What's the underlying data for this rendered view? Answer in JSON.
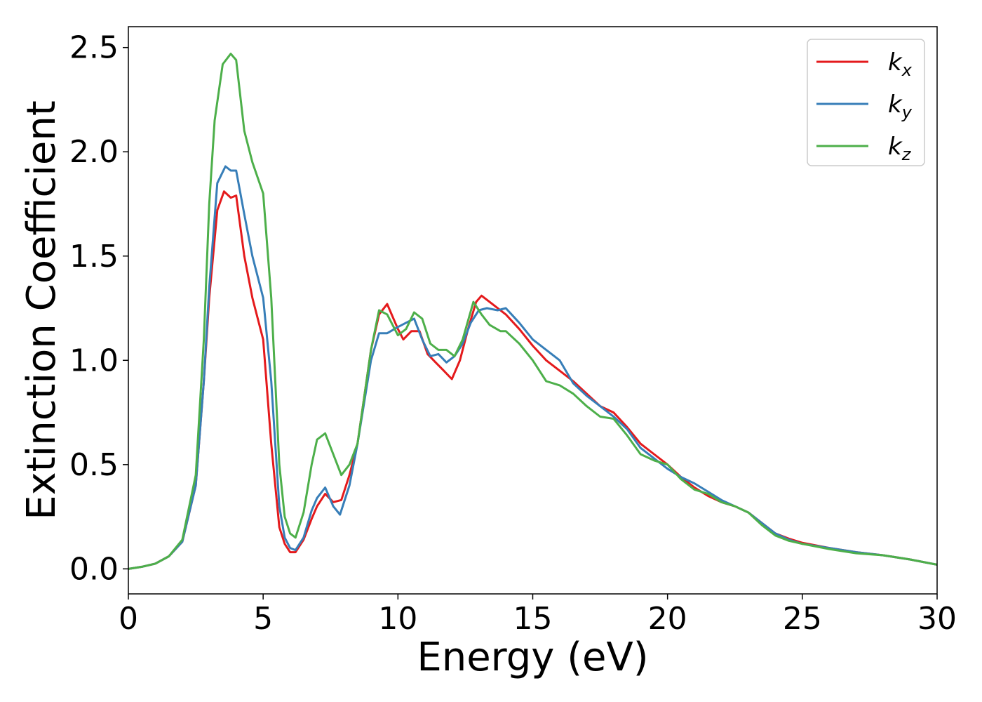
{
  "chart_data": {
    "type": "line",
    "title": "",
    "xlabel": "Energy (eV)",
    "ylabel": "Extinction Coefficient",
    "xlim": [
      0,
      30
    ],
    "ylim": [
      -0.12,
      2.6
    ],
    "xticks": [
      "0",
      "5",
      "10",
      "15",
      "20",
      "25",
      "30"
    ],
    "yticks": [
      "0.0",
      "0.5",
      "1.0",
      "1.5",
      "2.0",
      "2.5"
    ],
    "grid": false,
    "legend_position": "top-right",
    "series": [
      {
        "name": "k_x",
        "label_base": "k",
        "label_sub": "x",
        "color": "#e41a1c",
        "x": [
          0,
          0.5,
          1.0,
          1.5,
          2.0,
          2.5,
          2.8,
          3.0,
          3.3,
          3.55,
          3.8,
          4.0,
          4.3,
          4.6,
          5.0,
          5.3,
          5.6,
          5.8,
          6.0,
          6.2,
          6.5,
          6.8,
          7.0,
          7.3,
          7.6,
          7.9,
          8.2,
          8.5,
          9.0,
          9.3,
          9.6,
          10.0,
          10.2,
          10.5,
          10.8,
          11.1,
          11.4,
          11.7,
          12.0,
          12.3,
          12.6,
          12.9,
          13.1,
          13.5,
          14.0,
          14.5,
          15.0,
          15.5,
          16.0,
          16.5,
          17.0,
          17.5,
          18.0,
          18.5,
          19.0,
          19.5,
          20.0,
          20.5,
          21.0,
          21.5,
          22.0,
          22.5,
          23.0,
          23.5,
          24.0,
          24.5,
          25.0,
          26.0,
          27.0,
          28.0,
          29.0,
          30.0
        ],
        "y": [
          0.0,
          0.01,
          0.025,
          0.06,
          0.13,
          0.4,
          0.9,
          1.3,
          1.72,
          1.81,
          1.78,
          1.79,
          1.5,
          1.3,
          1.1,
          0.6,
          0.2,
          0.12,
          0.08,
          0.08,
          0.14,
          0.24,
          0.3,
          0.36,
          0.32,
          0.33,
          0.45,
          0.6,
          1.05,
          1.22,
          1.27,
          1.15,
          1.1,
          1.14,
          1.14,
          1.03,
          0.99,
          0.95,
          0.91,
          1.0,
          1.15,
          1.28,
          1.31,
          1.27,
          1.22,
          1.15,
          1.07,
          1.0,
          0.95,
          0.9,
          0.84,
          0.78,
          0.75,
          0.68,
          0.6,
          0.55,
          0.5,
          0.44,
          0.39,
          0.35,
          0.32,
          0.3,
          0.27,
          0.22,
          0.17,
          0.145,
          0.125,
          0.1,
          0.08,
          0.065,
          0.045,
          0.02
        ]
      },
      {
        "name": "k_y",
        "label_base": "k",
        "label_sub": "y",
        "color": "#377eb8",
        "x": [
          0,
          0.5,
          1.0,
          1.5,
          2.0,
          2.5,
          2.8,
          3.0,
          3.3,
          3.6,
          3.8,
          4.0,
          4.3,
          4.6,
          5.0,
          5.3,
          5.6,
          5.8,
          6.0,
          6.2,
          6.5,
          6.8,
          7.0,
          7.3,
          7.6,
          7.85,
          8.2,
          8.5,
          9.0,
          9.3,
          9.6,
          10.0,
          10.3,
          10.6,
          10.9,
          11.2,
          11.5,
          11.8,
          12.1,
          12.4,
          12.7,
          13.0,
          13.3,
          13.7,
          14.0,
          14.5,
          15.0,
          15.5,
          16.0,
          16.5,
          17.0,
          17.5,
          18.0,
          18.5,
          19.0,
          19.5,
          20.0,
          20.5,
          21.0,
          21.5,
          22.0,
          22.5,
          23.0,
          23.5,
          24.0,
          24.5,
          25.0,
          26.0,
          27.0,
          28.0,
          29.0,
          30.0
        ],
        "y": [
          0.0,
          0.01,
          0.025,
          0.06,
          0.13,
          0.4,
          0.9,
          1.35,
          1.85,
          1.93,
          1.91,
          1.91,
          1.7,
          1.5,
          1.3,
          0.9,
          0.3,
          0.15,
          0.1,
          0.09,
          0.15,
          0.28,
          0.34,
          0.39,
          0.3,
          0.26,
          0.4,
          0.6,
          1.0,
          1.13,
          1.13,
          1.16,
          1.18,
          1.2,
          1.1,
          1.02,
          1.03,
          0.99,
          1.02,
          1.08,
          1.18,
          1.24,
          1.25,
          1.24,
          1.25,
          1.18,
          1.1,
          1.05,
          1.0,
          0.89,
          0.83,
          0.78,
          0.73,
          0.67,
          0.58,
          0.53,
          0.48,
          0.44,
          0.41,
          0.37,
          0.33,
          0.3,
          0.27,
          0.22,
          0.17,
          0.14,
          0.12,
          0.1,
          0.08,
          0.065,
          0.045,
          0.02
        ]
      },
      {
        "name": "k_z",
        "label_base": "k",
        "label_sub": "z",
        "color": "#4daf4a",
        "x": [
          0,
          0.5,
          1.0,
          1.5,
          2.0,
          2.5,
          2.8,
          3.0,
          3.2,
          3.5,
          3.8,
          4.0,
          4.3,
          4.6,
          5.0,
          5.3,
          5.6,
          5.8,
          6.0,
          6.2,
          6.5,
          6.8,
          7.0,
          7.3,
          7.6,
          7.9,
          8.2,
          8.5,
          9.0,
          9.3,
          9.6,
          10.0,
          10.3,
          10.6,
          10.9,
          11.2,
          11.5,
          11.8,
          12.1,
          12.4,
          12.8,
          13.1,
          13.4,
          13.8,
          14.0,
          14.5,
          15.0,
          15.5,
          16.0,
          16.5,
          17.0,
          17.5,
          18.0,
          18.5,
          19.0,
          19.5,
          20.0,
          20.5,
          21.0,
          21.5,
          22.0,
          22.5,
          23.0,
          23.5,
          24.0,
          24.5,
          25.0,
          26.0,
          27.0,
          28.0,
          29.0,
          30.0
        ],
        "y": [
          0.0,
          0.01,
          0.025,
          0.06,
          0.14,
          0.45,
          1.1,
          1.75,
          2.15,
          2.42,
          2.47,
          2.44,
          2.1,
          1.95,
          1.8,
          1.3,
          0.5,
          0.25,
          0.17,
          0.15,
          0.27,
          0.5,
          0.62,
          0.65,
          0.55,
          0.45,
          0.5,
          0.6,
          1.05,
          1.24,
          1.22,
          1.12,
          1.15,
          1.23,
          1.2,
          1.08,
          1.05,
          1.05,
          1.02,
          1.1,
          1.28,
          1.22,
          1.17,
          1.14,
          1.14,
          1.08,
          1.0,
          0.9,
          0.88,
          0.84,
          0.78,
          0.73,
          0.72,
          0.64,
          0.55,
          0.52,
          0.5,
          0.43,
          0.38,
          0.36,
          0.32,
          0.3,
          0.27,
          0.21,
          0.16,
          0.135,
          0.12,
          0.095,
          0.075,
          0.065,
          0.045,
          0.02
        ]
      }
    ]
  }
}
